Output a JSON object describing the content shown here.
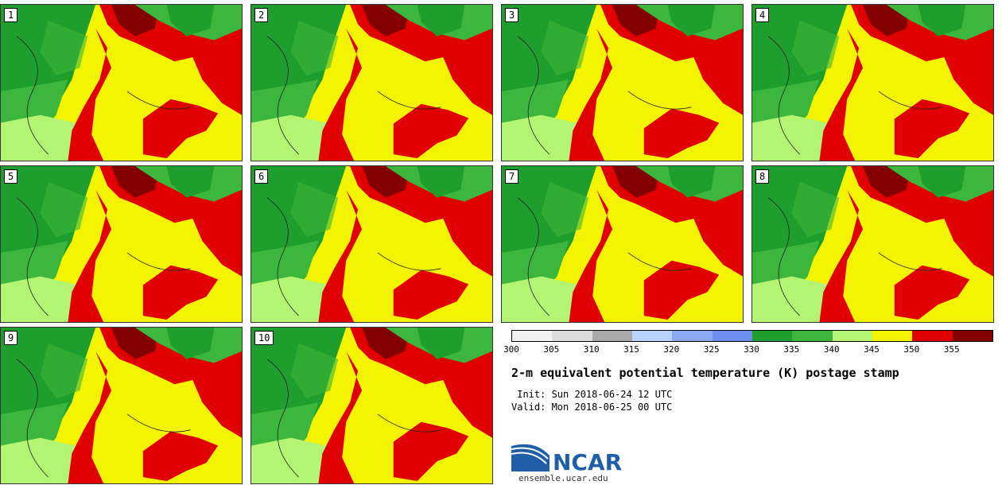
{
  "panels": [
    {
      "label": "1"
    },
    {
      "label": "2"
    },
    {
      "label": "3"
    },
    {
      "label": "4"
    },
    {
      "label": "5"
    },
    {
      "label": "6"
    },
    {
      "label": "7"
    },
    {
      "label": "8"
    },
    {
      "label": "9"
    },
    {
      "label": "10"
    }
  ],
  "colorbar": {
    "colors": [
      "#f2f2f2",
      "#dcdcdc",
      "#a9a9a9",
      "#b9d3ff",
      "#8aa9f2",
      "#6f8cf0",
      "#1e9e2c",
      "#3cb63c",
      "#b3f573",
      "#f4f400",
      "#e00000",
      "#820000"
    ],
    "ticks": [
      "300",
      "305",
      "310",
      "315",
      "320",
      "325",
      "330",
      "335",
      "340",
      "345",
      "350",
      "355"
    ]
  },
  "title": "2-m equivalent potential temperature (K) postage stamp",
  "init": " Init: Sun 2018-06-24 12 UTC",
  "valid": "Valid: Mon 2018-06-25 00 UTC",
  "logo": {
    "text": "NCAR",
    "url": "ensemble.ucar.edu"
  },
  "map_colors": {
    "dark_green": "#1e9e2c",
    "green": "#3cb63c",
    "light_green": "#b3f573",
    "yellow": "#f4f400",
    "red": "#e00000",
    "dark_red": "#820000"
  }
}
